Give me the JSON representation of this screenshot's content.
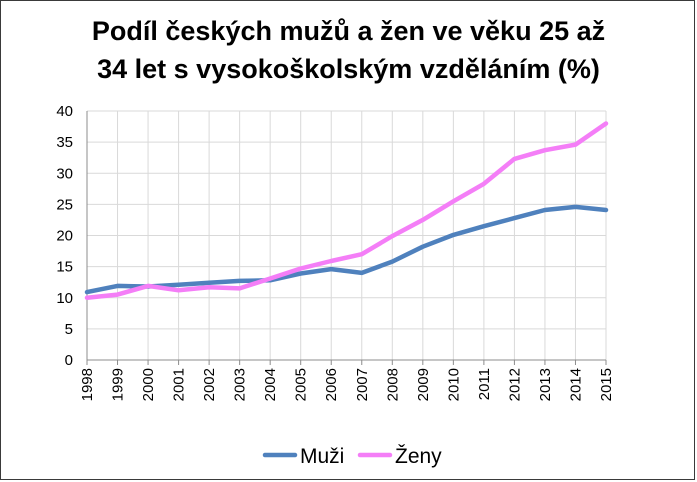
{
  "chart_data": {
    "type": "line",
    "title_line1": "Podíl českých mužů a žen ve věku 25 až",
    "title_line2": "34 let s vysokoškolským vzděláním (%)",
    "xlabel": "",
    "ylabel": "",
    "x": [
      "1998",
      "1999",
      "2000",
      "2001",
      "2002",
      "2003",
      "2004",
      "2005",
      "2006",
      "2007",
      "2008",
      "2009",
      "2010",
      "2011",
      "2012",
      "2013",
      "2014",
      "2015"
    ],
    "ylim": [
      0,
      40
    ],
    "yticks": [
      0,
      5,
      10,
      15,
      20,
      25,
      30,
      35,
      40
    ],
    "grid": true,
    "legend_position": "bottom",
    "series": [
      {
        "name": "Muži",
        "color": "#4f81bd",
        "values": [
          10.9,
          11.9,
          11.8,
          12.1,
          12.4,
          12.7,
          12.8,
          13.9,
          14.6,
          14.0,
          15.8,
          18.2,
          20.1,
          21.5,
          22.8,
          24.1,
          24.6,
          24.1
        ]
      },
      {
        "name": "Ženy",
        "color": "#f47ef7",
        "values": [
          10.0,
          10.5,
          11.9,
          11.2,
          11.7,
          11.5,
          13.1,
          14.7,
          15.9,
          17.0,
          19.9,
          22.5,
          25.5,
          28.3,
          32.3,
          33.7,
          34.6,
          38.0
        ]
      }
    ]
  }
}
